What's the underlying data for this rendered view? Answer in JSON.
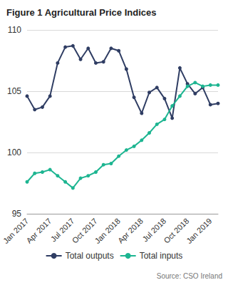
{
  "chart_data": {
    "type": "line",
    "title": "Figure 1 Agricultural Price Indices",
    "categories": [
      "Jan 2017",
      null,
      null,
      "Apr 2017",
      null,
      null,
      "Jul 2017",
      null,
      null,
      "Oct 2017",
      null,
      null,
      "Jan 2018",
      null,
      null,
      "Apr 2018",
      null,
      null,
      "Jul 2018",
      null,
      null,
      "Oct 2018",
      null,
      null,
      "Jan 2019",
      null
    ],
    "series": [
      {
        "name": "Total outputs",
        "color": "#2f3d63",
        "marker": "circle",
        "values": [
          104.6,
          103.5,
          103.7,
          104.6,
          107.3,
          108.6,
          108.7,
          107.6,
          108.5,
          107.3,
          107.4,
          108.5,
          108.3,
          106.8,
          104.5,
          103.2,
          104.9,
          105.3,
          104.4,
          102.8,
          106.9,
          105.6,
          104.8,
          105.3,
          103.9,
          104.0
        ]
      },
      {
        "name": "Total inputs",
        "color": "#1db591",
        "marker": "circle",
        "values": [
          97.6,
          98.3,
          98.4,
          98.6,
          98.1,
          97.6,
          97.1,
          97.9,
          98.1,
          98.4,
          99.0,
          99.1,
          99.7,
          100.2,
          100.5,
          101.0,
          101.6,
          102.3,
          102.7,
          103.8,
          104.6,
          105.4,
          105.7,
          105.4,
          105.5,
          105.5
        ]
      }
    ],
    "ylim": [
      95,
      110
    ],
    "yticks": [
      95,
      100,
      105,
      110
    ],
    "grid": true,
    "legend": "bottom",
    "annotations": [
      "Source: CSO Ireland"
    ]
  }
}
